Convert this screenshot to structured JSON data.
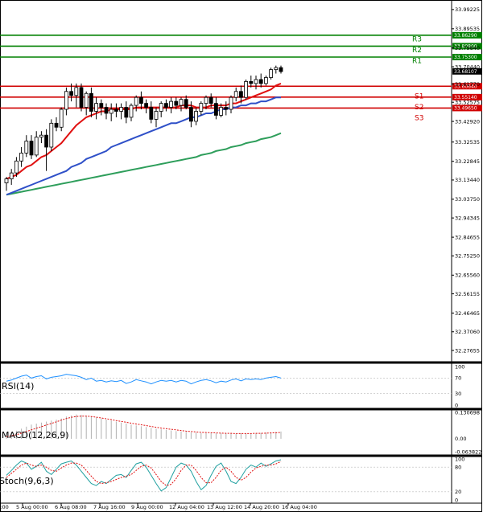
{
  "chart_data": {
    "type": "candlestick",
    "price_axis": {
      "range": [
        32.22,
        34.02
      ],
      "ticks": [
        "33.99225",
        "33.89535",
        "33.79840",
        "33.70440",
        "33.61770",
        "33.52575",
        "33.42920",
        "33.32535",
        "33.22845",
        "33.13440",
        "33.03750",
        "32.94345",
        "32.84655",
        "32.75250",
        "32.65560",
        "32.56155",
        "32.46465",
        "32.37060",
        "32.27655"
      ]
    },
    "time_axis": {
      "labels": [
        "00:00",
        "5 Aug 00:00",
        "6 Aug 08:00",
        "7 Aug 16:00",
        "9 Aug 00:00",
        "12 Aug 04:00",
        "13 Aug 12:00",
        "14 Aug 20:00",
        "16 Aug 04:00"
      ]
    },
    "levels": [
      {
        "label": "R3",
        "value": 33.8629,
        "value_text": "33.86290",
        "color": "#008000"
      },
      {
        "label": "R2",
        "value": 33.808,
        "value_text": "33.80800",
        "color": "#008000"
      },
      {
        "label": "R1",
        "value": 33.753,
        "value_text": "33.75300",
        "color": "#008000"
      },
      {
        "label": "S1",
        "value": 33.6064,
        "value_text": "33.60640",
        "color": "#d00000"
      },
      {
        "label": "S2",
        "value": 33.5514,
        "value_text": "33.55140",
        "color": "#d00000"
      },
      {
        "label": "S3",
        "value": 33.4965,
        "value_text": "33.49650",
        "color": "#d00000"
      }
    ],
    "current_price": {
      "value": 33.68107,
      "text": "33.68107"
    },
    "candles": [
      [
        33.12,
        33.15,
        33.08,
        33.14
      ],
      [
        33.14,
        33.19,
        33.11,
        33.17
      ],
      [
        33.17,
        33.25,
        33.15,
        33.23
      ],
      [
        33.23,
        33.3,
        33.2,
        33.27
      ],
      [
        33.27,
        33.36,
        33.25,
        33.33
      ],
      [
        33.33,
        33.36,
        33.24,
        33.26
      ],
      [
        33.26,
        33.38,
        33.25,
        33.35
      ],
      [
        33.35,
        33.38,
        33.32,
        33.36
      ],
      [
        33.36,
        33.39,
        33.18,
        33.3
      ],
      [
        33.3,
        33.44,
        33.28,
        33.42
      ],
      [
        33.42,
        33.45,
        33.38,
        33.4
      ],
      [
        33.4,
        33.5,
        33.38,
        33.49
      ],
      [
        33.49,
        33.6,
        33.46,
        33.58
      ],
      [
        33.58,
        33.62,
        33.53,
        33.56
      ],
      [
        33.56,
        33.62,
        33.5,
        33.6
      ],
      [
        33.6,
        33.62,
        33.48,
        33.5
      ],
      [
        33.5,
        33.58,
        33.46,
        33.57
      ],
      [
        33.57,
        33.6,
        33.45,
        33.48
      ],
      [
        33.48,
        33.55,
        33.44,
        33.52
      ],
      [
        33.52,
        33.54,
        33.46,
        33.5
      ],
      [
        33.5,
        33.52,
        33.44,
        33.47
      ],
      [
        33.47,
        33.52,
        33.43,
        33.49
      ],
      [
        33.49,
        33.52,
        33.45,
        33.48
      ],
      [
        33.48,
        33.52,
        33.44,
        33.5
      ],
      [
        33.5,
        33.53,
        33.42,
        33.45
      ],
      [
        33.45,
        33.52,
        33.43,
        33.51
      ],
      [
        33.51,
        33.56,
        33.48,
        33.55
      ],
      [
        33.55,
        33.58,
        33.49,
        33.52
      ],
      [
        33.52,
        33.54,
        33.47,
        33.5
      ],
      [
        33.5,
        33.53,
        33.42,
        33.44
      ],
      [
        33.44,
        33.5,
        33.4,
        33.48
      ],
      [
        33.48,
        33.53,
        33.45,
        33.52
      ],
      [
        33.52,
        33.54,
        33.48,
        33.5
      ],
      [
        33.5,
        33.55,
        33.47,
        33.53
      ],
      [
        33.53,
        33.55,
        33.49,
        33.51
      ],
      [
        33.51,
        33.55,
        33.48,
        33.54
      ],
      [
        33.54,
        33.56,
        33.49,
        33.5
      ],
      [
        33.5,
        33.53,
        33.4,
        33.43
      ],
      [
        33.43,
        33.5,
        33.41,
        33.48
      ],
      [
        33.48,
        33.53,
        33.46,
        33.52
      ],
      [
        33.52,
        33.56,
        33.49,
        33.55
      ],
      [
        33.55,
        33.57,
        33.5,
        33.52
      ],
      [
        33.52,
        33.55,
        33.44,
        33.46
      ],
      [
        33.46,
        33.52,
        33.45,
        33.5
      ],
      [
        33.5,
        33.53,
        33.46,
        33.49
      ],
      [
        33.49,
        33.56,
        33.47,
        33.55
      ],
      [
        33.55,
        33.6,
        33.53,
        33.58
      ],
      [
        33.58,
        33.61,
        33.52,
        33.55
      ],
      [
        33.55,
        33.64,
        33.54,
        33.63
      ],
      [
        33.63,
        33.66,
        33.6,
        33.62
      ],
      [
        33.62,
        33.66,
        33.59,
        33.64
      ],
      [
        33.64,
        33.67,
        33.6,
        33.62
      ],
      [
        33.62,
        33.66,
        33.61,
        33.65
      ],
      [
        33.65,
        33.7,
        33.64,
        33.69
      ],
      [
        33.69,
        33.71,
        33.67,
        33.7
      ],
      [
        33.7,
        33.71,
        33.67,
        33.68
      ]
    ],
    "ma_fast": [
      33.14,
      33.15,
      33.16,
      33.18,
      33.2,
      33.21,
      33.23,
      33.25,
      33.26,
      33.28,
      33.3,
      33.32,
      33.35,
      33.38,
      33.41,
      33.43,
      33.45,
      33.46,
      33.47,
      33.48,
      33.48,
      33.49,
      33.49,
      33.49,
      33.49,
      33.49,
      33.5,
      33.5,
      33.5,
      33.5,
      33.5,
      33.5,
      33.5,
      33.5,
      33.5,
      33.51,
      33.51,
      33.51,
      33.5,
      33.5,
      33.5,
      33.51,
      33.51,
      33.51,
      33.51,
      33.52,
      33.52,
      33.53,
      33.54,
      33.55,
      33.56,
      33.57,
      33.58,
      33.59,
      33.61,
      33.62
    ],
    "ma_mid": [
      33.06,
      33.07,
      33.08,
      33.09,
      33.1,
      33.11,
      33.12,
      33.13,
      33.14,
      33.15,
      33.16,
      33.17,
      33.18,
      33.2,
      33.21,
      33.22,
      33.24,
      33.25,
      33.26,
      33.27,
      33.28,
      33.3,
      33.31,
      33.32,
      33.33,
      33.34,
      33.35,
      33.36,
      33.37,
      33.38,
      33.39,
      33.4,
      33.41,
      33.42,
      33.42,
      33.43,
      33.44,
      33.45,
      33.45,
      33.46,
      33.47,
      33.47,
      33.48,
      33.49,
      33.49,
      33.5,
      33.5,
      33.51,
      33.51,
      33.52,
      33.52,
      33.53,
      33.53,
      33.54,
      33.55,
      33.55
    ],
    "ma_slow": [
      33.06,
      33.065,
      33.07,
      33.075,
      33.08,
      33.085,
      33.09,
      33.095,
      33.1,
      33.105,
      33.11,
      33.115,
      33.12,
      33.125,
      33.13,
      33.135,
      33.14,
      33.145,
      33.15,
      33.155,
      33.16,
      33.165,
      33.17,
      33.175,
      33.18,
      33.185,
      33.19,
      33.195,
      33.2,
      33.205,
      33.21,
      33.215,
      33.22,
      33.225,
      33.23,
      33.235,
      33.24,
      33.245,
      33.25,
      33.26,
      33.265,
      33.27,
      33.28,
      33.285,
      33.29,
      33.3,
      33.305,
      33.31,
      33.32,
      33.325,
      33.33,
      33.34,
      33.345,
      33.35,
      33.36,
      33.37
    ],
    "rsi": {
      "label": "RSI(14)",
      "ticks": [
        "100",
        "70",
        "30",
        "0"
      ],
      "range": [
        0,
        100
      ],
      "values": [
        62,
        65,
        70,
        75,
        78,
        70,
        74,
        76,
        68,
        72,
        74,
        76,
        80,
        78,
        76,
        72,
        66,
        70,
        62,
        64,
        60,
        63,
        61,
        64,
        56,
        60,
        66,
        63,
        60,
        55,
        60,
        64,
        62,
        64,
        60,
        64,
        62,
        55,
        60,
        64,
        66,
        63,
        58,
        62,
        60,
        65,
        68,
        63,
        68,
        66,
        68,
        66,
        70,
        72,
        74,
        70
      ]
    },
    "macd": {
      "label": "MACD(12,26,9)",
      "ticks": [
        "0.130698",
        "0.00",
        "-0.063822"
      ],
      "range": [
        -0.063822,
        0.130698
      ],
      "histogram": [
        0.02,
        0.03,
        0.04,
        0.05,
        0.06,
        0.07,
        0.075,
        0.08,
        0.085,
        0.09,
        0.095,
        0.1,
        0.11,
        0.115,
        0.12,
        0.118,
        0.114,
        0.11,
        0.105,
        0.1,
        0.095,
        0.09,
        0.085,
        0.08,
        0.075,
        0.07,
        0.066,
        0.062,
        0.058,
        0.054,
        0.05,
        0.047,
        0.044,
        0.041,
        0.038,
        0.036,
        0.034,
        0.032,
        0.03,
        0.029,
        0.028,
        0.028,
        0.027,
        0.027,
        0.026,
        0.026,
        0.026,
        0.026,
        0.026,
        0.027,
        0.028,
        0.029,
        0.03,
        0.032,
        0.034,
        0.036
      ],
      "signal": [
        0.01,
        0.015,
        0.02,
        0.028,
        0.036,
        0.044,
        0.052,
        0.06,
        0.068,
        0.076,
        0.084,
        0.092,
        0.1,
        0.106,
        0.11,
        0.112,
        0.112,
        0.11,
        0.107,
        0.103,
        0.099,
        0.095,
        0.09,
        0.086,
        0.082,
        0.077,
        0.073,
        0.069,
        0.065,
        0.061,
        0.057,
        0.053,
        0.05,
        0.047,
        0.044,
        0.041,
        0.038,
        0.036,
        0.034,
        0.032,
        0.031,
        0.03,
        0.029,
        0.028,
        0.027,
        0.027,
        0.026,
        0.026,
        0.026,
        0.026,
        0.027,
        0.027,
        0.028,
        0.029,
        0.03,
        0.031
      ]
    },
    "stoch": {
      "label": "Stoch(9,6,3)",
      "ticks": [
        "100",
        "80",
        "20",
        "0"
      ],
      "range": [
        0,
        100
      ],
      "k": [
        60,
        72,
        85,
        95,
        90,
        75,
        82,
        92,
        70,
        62,
        75,
        88,
        92,
        95,
        85,
        70,
        55,
        40,
        35,
        45,
        40,
        50,
        60,
        62,
        55,
        72,
        88,
        92,
        80,
        60,
        40,
        22,
        30,
        55,
        80,
        90,
        85,
        70,
        45,
        25,
        35,
        60,
        82,
        90,
        70,
        45,
        40,
        55,
        75,
        85,
        80,
        90,
        82,
        88,
        95,
        98
      ],
      "d": [
        55,
        65,
        75,
        85,
        90,
        85,
        82,
        85,
        80,
        72,
        70,
        78,
        85,
        90,
        90,
        85,
        72,
        58,
        45,
        40,
        42,
        45,
        50,
        55,
        58,
        62,
        72,
        82,
        85,
        78,
        62,
        45,
        35,
        38,
        52,
        72,
        85,
        85,
        72,
        55,
        42,
        42,
        55,
        72,
        80,
        70,
        55,
        48,
        55,
        68,
        78,
        82,
        85,
        85,
        88,
        94
      ]
    }
  }
}
